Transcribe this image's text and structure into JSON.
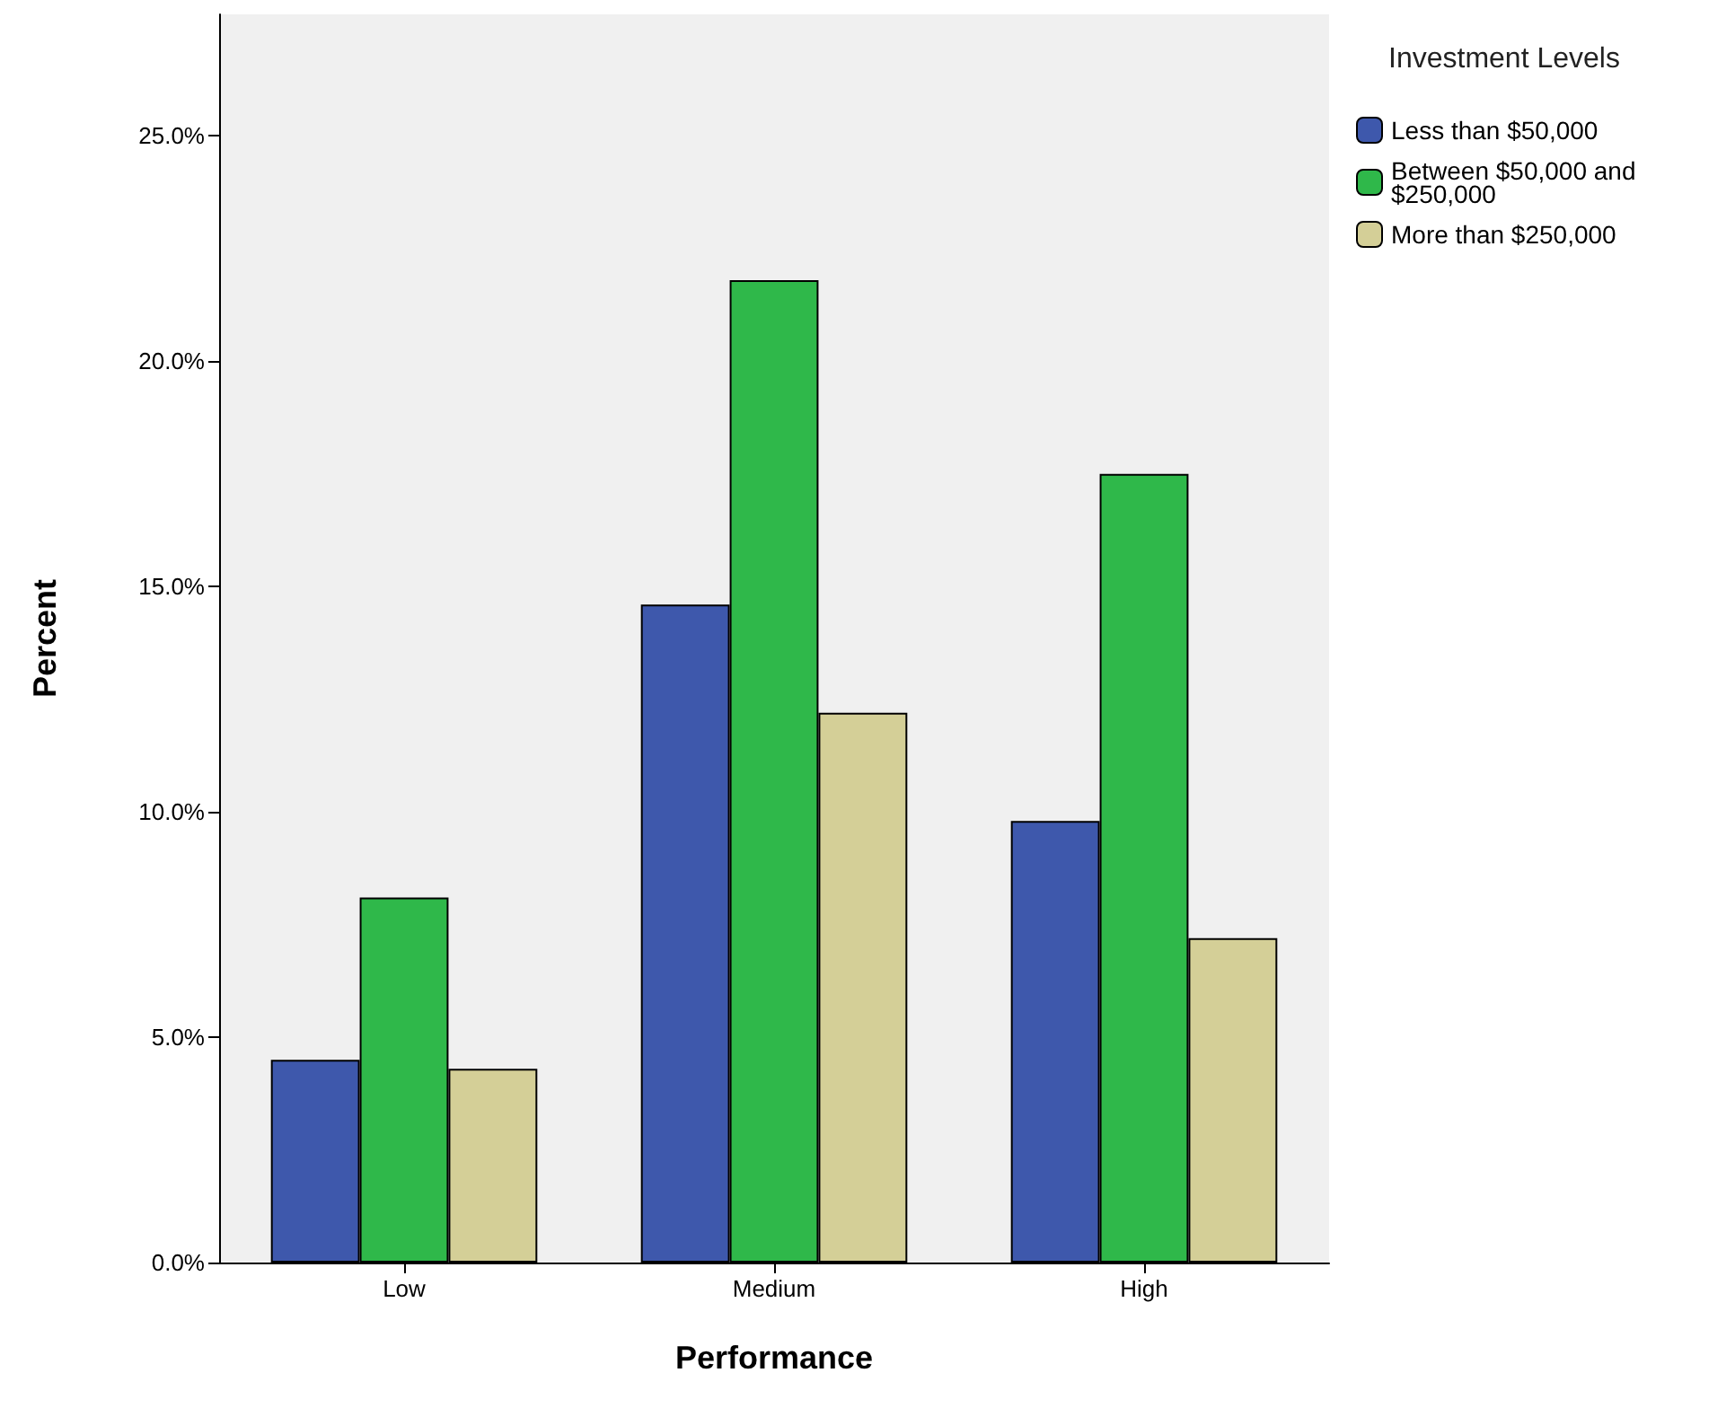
{
  "chart_data": {
    "type": "bar",
    "xlabel": "Performance",
    "ylabel": "Percent",
    "legend_title": "Investment Levels",
    "categories": [
      "Low",
      "Medium",
      "High"
    ],
    "series": [
      {
        "name": "Less than $50,000",
        "color": "#3e58ac",
        "values": [
          4.5,
          14.6,
          9.8
        ]
      },
      {
        "name": "Between $50,000 and $250,000",
        "color": "#2fb84a",
        "values": [
          8.1,
          21.8,
          17.5
        ]
      },
      {
        "name": "More than $250,000",
        "color": "#d4cf97",
        "values": [
          4.3,
          12.2,
          7.2
        ]
      }
    ],
    "ylim": [
      0,
      27.7
    ],
    "yticks": [
      {
        "value": 0,
        "label": "0.0%"
      },
      {
        "value": 5,
        "label": "5.0%"
      },
      {
        "value": 10,
        "label": "10.0%"
      },
      {
        "value": 15,
        "label": "15.0%"
      },
      {
        "value": 20,
        "label": "20.0%"
      },
      {
        "value": 25,
        "label": "25.0%"
      }
    ],
    "grid": false,
    "legend": "top right"
  }
}
